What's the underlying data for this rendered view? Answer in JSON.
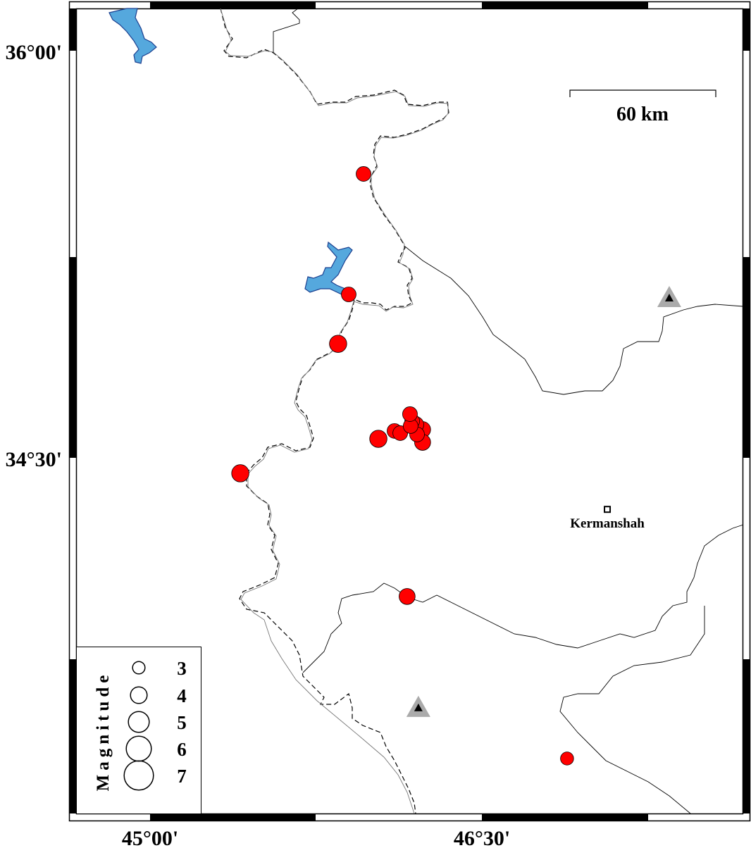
{
  "axes": {
    "lat_labels": [
      {
        "text": "36°00'",
        "lat": 36.0
      },
      {
        "text": "34°30'",
        "lat": 34.5
      }
    ],
    "lon_labels": [
      {
        "text": "45°00'",
        "lon": 45.0
      },
      {
        "text": "46°30'",
        "lon": 46.5
      }
    ]
  },
  "scale_bar": {
    "label": "60 km"
  },
  "city": {
    "name": "Kermanshah",
    "lon": 47.067,
    "lat": 34.31
  },
  "stations": [
    {
      "lon": 47.347,
      "lat": 35.089
    },
    {
      "lon": 46.213,
      "lat": 33.579
    }
  ],
  "events_color": "#ff0000",
  "lake_color": "#55a8dd",
  "station_color": "#aaaaaa",
  "events": [
    {
      "lon": 45.965,
      "lat": 35.546,
      "mag": 3.4
    },
    {
      "lon": 45.898,
      "lat": 35.102,
      "mag": 3.4
    },
    {
      "lon": 45.85,
      "lat": 34.92,
      "mag": 4.0
    },
    {
      "lon": 45.408,
      "lat": 34.443,
      "mag": 4.0
    },
    {
      "lon": 46.032,
      "lat": 34.57,
      "mag": 4.0
    },
    {
      "lon": 46.162,
      "lat": 33.989,
      "mag": 3.7
    },
    {
      "lon": 46.885,
      "lat": 33.392,
      "mag": 3.0
    },
    {
      "lon": 46.232,
      "lat": 34.604,
      "mag": 3.7
    },
    {
      "lon": 46.201,
      "lat": 34.622,
      "mag": 3.7
    },
    {
      "lon": 46.232,
      "lat": 34.557,
      "mag": 3.7
    },
    {
      "lon": 46.105,
      "lat": 34.599,
      "mag": 3.4
    },
    {
      "lon": 46.131,
      "lat": 34.591,
      "mag": 3.4
    },
    {
      "lon": 46.207,
      "lat": 34.586,
      "mag": 3.4
    },
    {
      "lon": 46.185,
      "lat": 34.635,
      "mag": 3.4
    },
    {
      "lon": 46.178,
      "lat": 34.617,
      "mag": 3.4
    },
    {
      "lon": 46.175,
      "lat": 34.661,
      "mag": 3.4
    }
  ],
  "legend": {
    "title": "Magnitude",
    "items": [
      {
        "label": "3",
        "mag": 3
      },
      {
        "label": "4",
        "mag": 4
      },
      {
        "label": "5",
        "mag": 5
      },
      {
        "label": "6",
        "mag": 6
      },
      {
        "label": "7",
        "mag": 7
      }
    ]
  }
}
